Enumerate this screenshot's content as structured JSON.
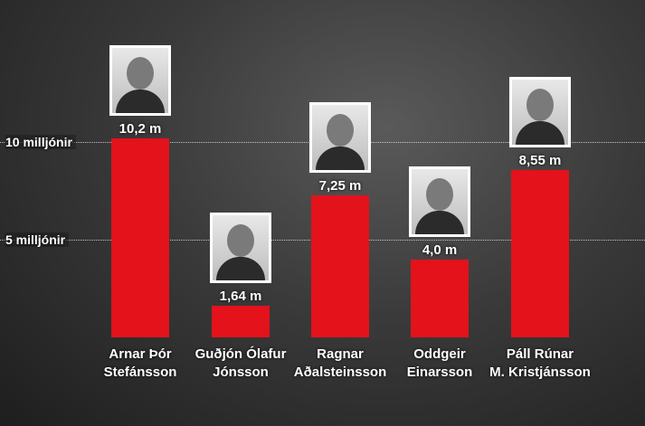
{
  "chart_data": {
    "type": "bar",
    "categories": [
      "Arnar Þór\nStefánsson",
      "Guðjón Ólafur\nJónsson",
      "Ragnar\nAðalsteinsson",
      "Oddgeir\nEinarsson",
      "Páll Rúnar\nM. Kristjánsson"
    ],
    "values": [
      10.2,
      1.64,
      7.25,
      4.0,
      8.55
    ],
    "value_labels": [
      "10,2 m",
      "1,64 m",
      "7,25 m",
      "4,0 m",
      "8,55 m"
    ],
    "color": "#e3121b",
    "ylim": [
      0,
      17
    ],
    "yticks": [
      {
        "value": 5,
        "label": "5 milljónir"
      },
      {
        "value": 10,
        "label": "10 milljónir"
      }
    ],
    "grid": true
  }
}
